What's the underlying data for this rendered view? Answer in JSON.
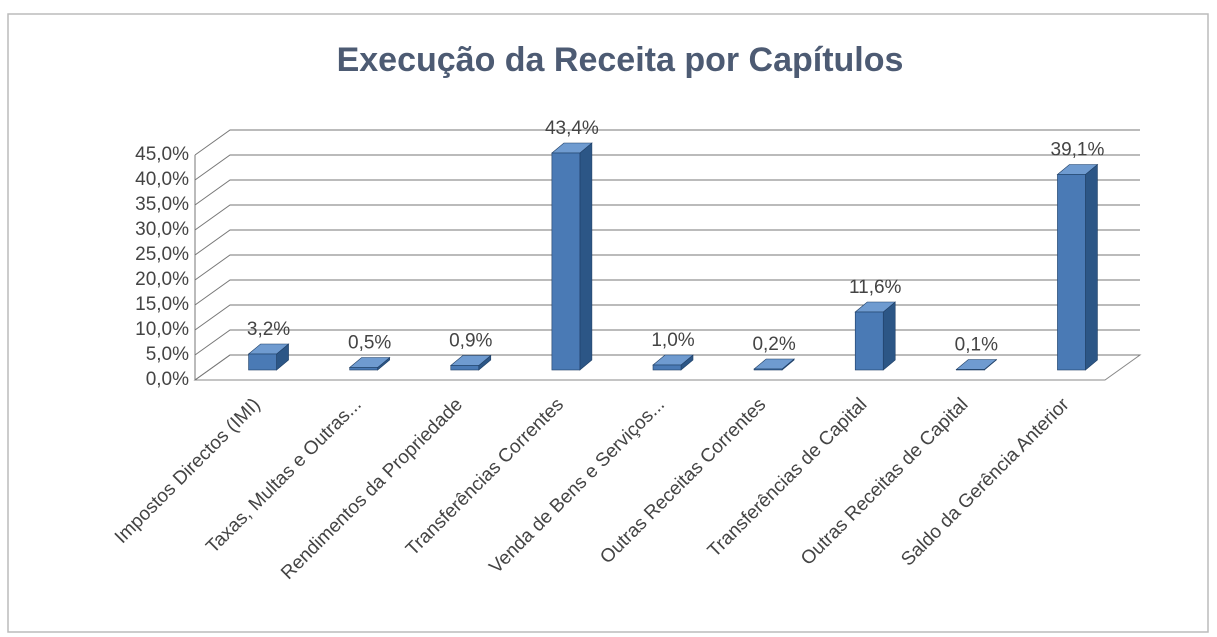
{
  "chart_data": {
    "type": "bar3d",
    "title": "Execução da Receita por Capítulos",
    "categories": [
      "Impostos Directos (IMI)",
      "Taxas, Multas e Outras...",
      "Rendimentos da Propriedade",
      "Transferências Correntes",
      "Venda de Bens e Serviços...",
      "Outras Receitas Correntes",
      "Transferências de Capital",
      "Outras Receitas de Capital",
      "Saldo da Gerência Anterior"
    ],
    "values": [
      3.2,
      0.5,
      0.9,
      43.4,
      1.0,
      0.2,
      11.6,
      0.1,
      39.1
    ],
    "value_labels": [
      "3,2%",
      "0,5%",
      "0,9%",
      "43,4%",
      "1,0%",
      "0,2%",
      "11,6%",
      "0,1%",
      "39,1%"
    ],
    "color": "#4a7ab5",
    "ylim": [
      0,
      45
    ],
    "yticks": [
      {
        "value": 0,
        "label": "0,0%"
      },
      {
        "value": 5,
        "label": "5,0%"
      },
      {
        "value": 10,
        "label": "10,0%"
      },
      {
        "value": 15,
        "label": "15,0%"
      },
      {
        "value": 20,
        "label": "20,0%"
      },
      {
        "value": 25,
        "label": "25,0%"
      },
      {
        "value": 30,
        "label": "30,0%"
      },
      {
        "value": 35,
        "label": "35,0%"
      },
      {
        "value": 40,
        "label": "40,0%"
      },
      {
        "value": 45,
        "label": "45,0%"
      }
    ],
    "grid": true
  }
}
